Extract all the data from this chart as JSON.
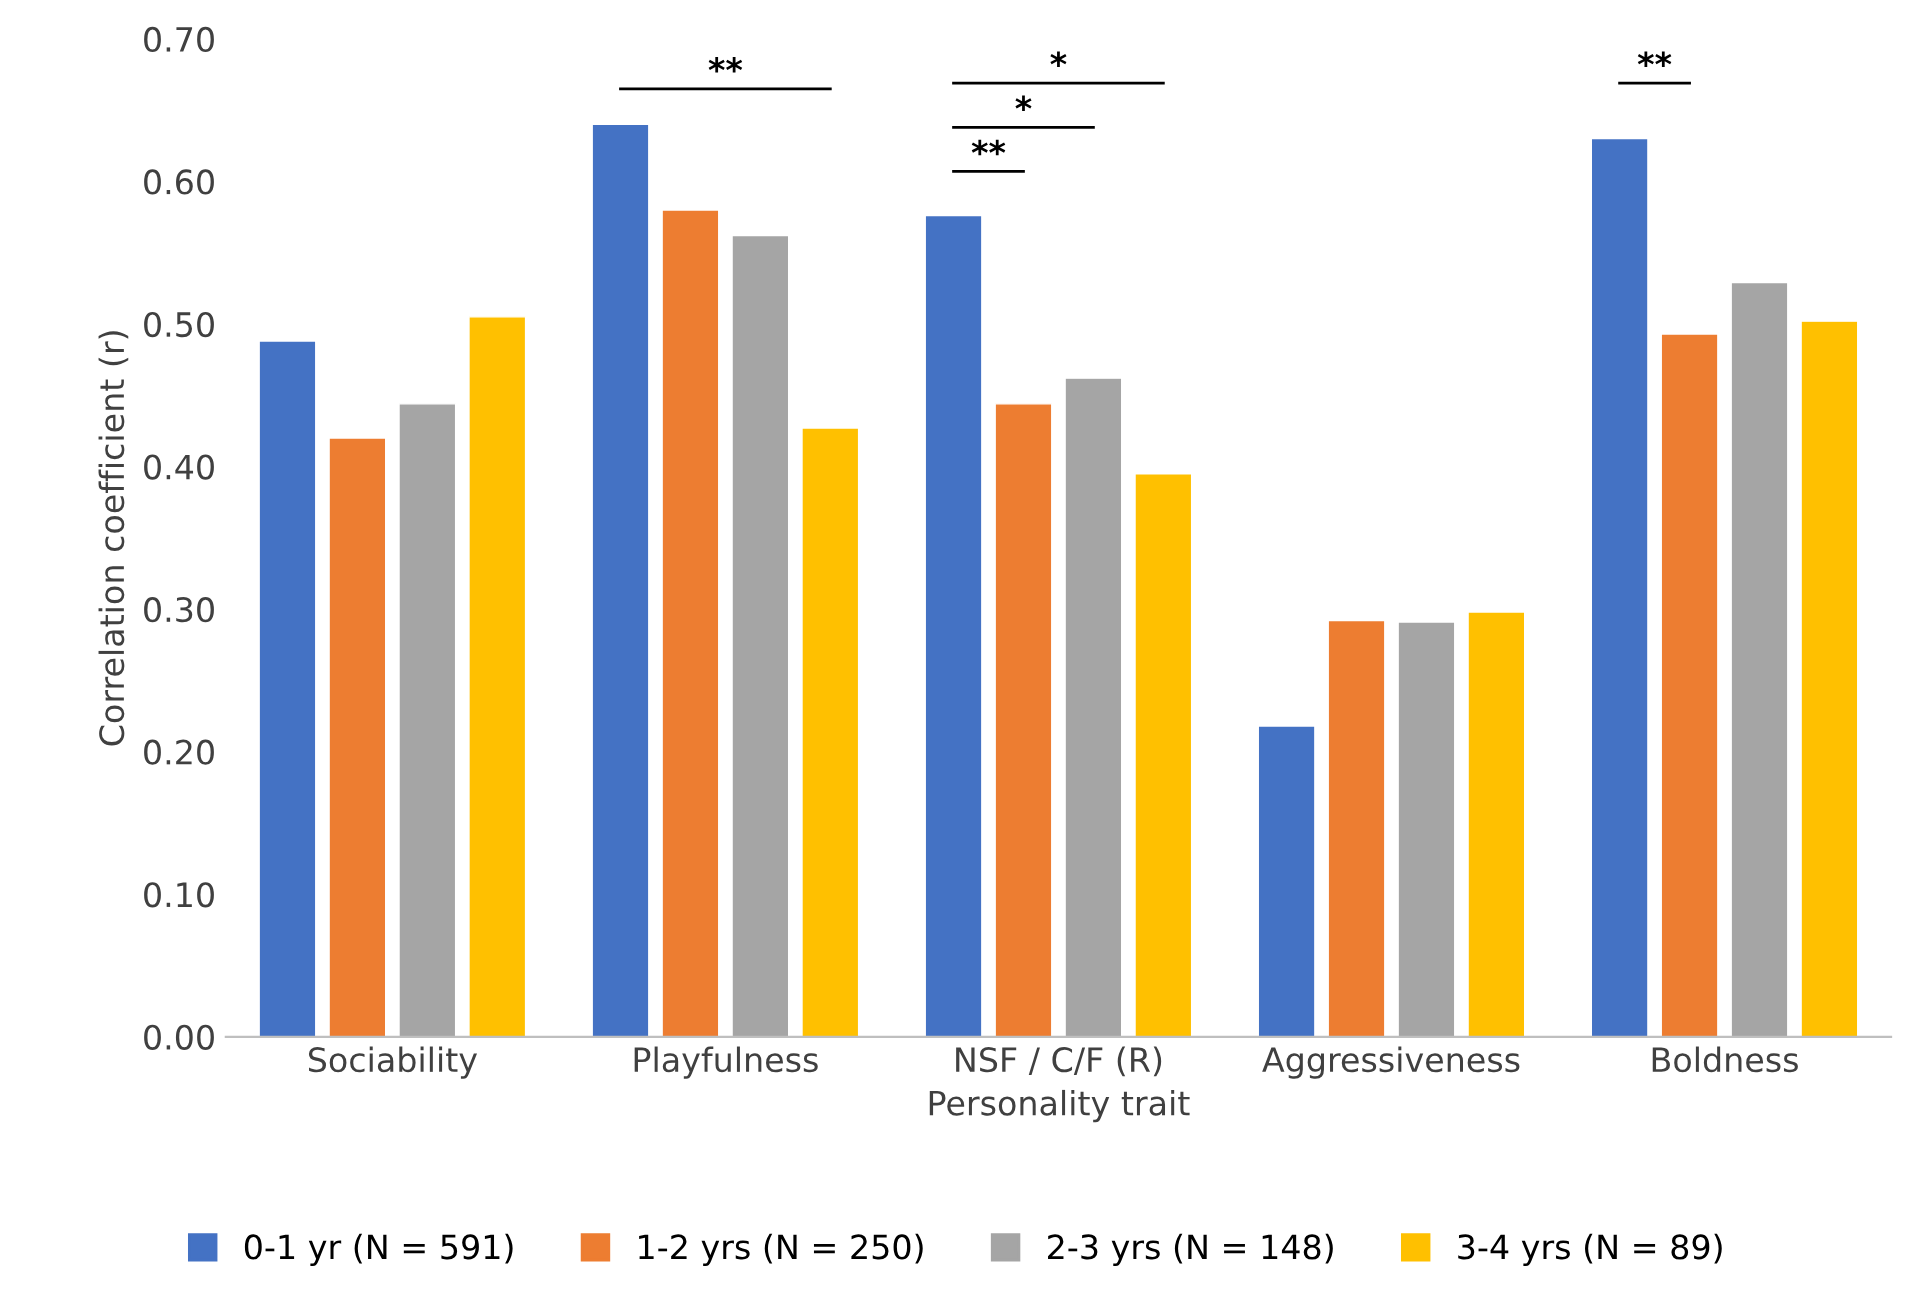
{
  "chart_data": {
    "type": "bar",
    "xlabel": "Personality trait",
    "ylabel": "Correlation coefficient (r)",
    "categories": [
      "Sociability",
      "Playfulness",
      "NSF / C/F (R)",
      "Aggressiveness",
      "Boldness"
    ],
    "series": [
      {
        "name": "0-1 yr (N = 591)",
        "color": "#4472c4",
        "values": [
          0.488,
          0.64,
          0.576,
          0.218,
          0.63
        ]
      },
      {
        "name": "1-2 yrs (N = 250)",
        "color": "#ed7d31",
        "values": [
          0.42,
          0.58,
          0.444,
          0.292,
          0.493
        ]
      },
      {
        "name": "2-3 yrs (N = 148)",
        "color": "#a5a5a5",
        "values": [
          0.444,
          0.562,
          0.462,
          0.291,
          0.529
        ]
      },
      {
        "name": "3-4 yrs (N = 89)",
        "color": "#ffc000",
        "values": [
          0.505,
          0.427,
          0.395,
          0.298,
          0.502
        ]
      }
    ],
    "ylim": [
      0,
      0.7
    ],
    "yticks": [
      {
        "value": 0,
        "label": "0.00"
      },
      {
        "value": 0.1,
        "label": "0.10"
      },
      {
        "value": 0.2,
        "label": "0.20"
      },
      {
        "value": 0.3,
        "label": "0.30"
      },
      {
        "value": 0.4,
        "label": "0.40"
      },
      {
        "value": 0.5,
        "label": "0.50"
      },
      {
        "value": 0.6,
        "label": "0.60"
      },
      {
        "value": 0.7,
        "label": "0.70"
      }
    ],
    "grid": false,
    "legend": "bottom",
    "annotations": [
      "**",
      "*",
      "*",
      "**",
      "**"
    ]
  }
}
